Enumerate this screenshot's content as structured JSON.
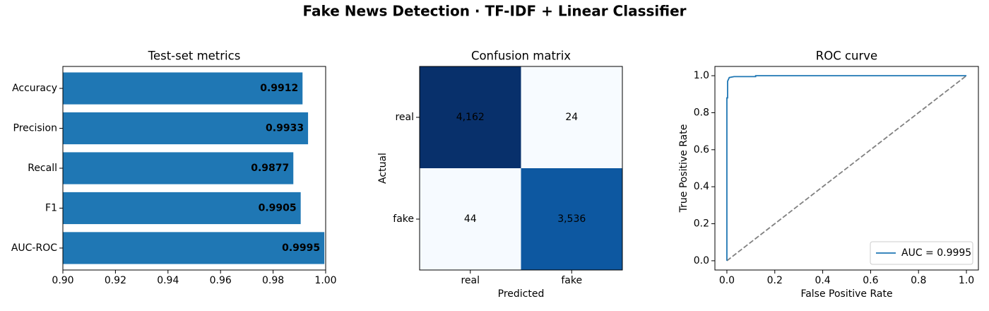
{
  "title": "Fake News Detection  ·  TF-IDF + Linear Classifier",
  "chart_data": [
    {
      "type": "barh",
      "title": "Test-set metrics",
      "categories": [
        "Accuracy",
        "Precision",
        "Recall",
        "F1",
        "AUC-ROC"
      ],
      "values": [
        0.9912,
        0.9933,
        0.9877,
        0.9905,
        0.9995
      ],
      "color": "#1f77b4",
      "xlim": [
        0.9,
        1.0
      ],
      "xticks": [
        {
          "value": 0.9,
          "label": "0.90"
        },
        0.92,
        0.94,
        0.96,
        0.98,
        {
          "value": 1.0,
          "label": "1.00"
        }
      ]
    },
    {
      "type": "heatmap",
      "title": "Confusion matrix",
      "x_categories": [
        "real",
        "fake"
      ],
      "y_categories": [
        "real",
        "fake"
      ],
      "values": [
        [
          4162,
          24
        ],
        [
          44,
          3536
        ]
      ],
      "value_labels": [
        [
          "4,162",
          "24"
        ],
        [
          "44",
          "3,536"
        ]
      ],
      "xlabel": "Predicted",
      "ylabel": "Actual",
      "colormap": [
        "#f7fbff",
        "#deebf7",
        "#c6dbef",
        "#9ecae1",
        "#6baed6",
        "#4292c6",
        "#2171b5",
        "#08519c",
        "#08306b"
      ]
    },
    {
      "type": "line",
      "title": "ROC curve",
      "xlabel": "False Positive Rate",
      "ylabel": "True Positive Rate",
      "series": [
        {
          "name": "AUC = 0.9995",
          "color": "#1f77b4",
          "x": [
            0,
            0,
            0.003,
            0.003,
            0.01,
            0.03,
            0.12,
            0.12,
            1
          ],
          "values": [
            0,
            0.88,
            0.88,
            0.97,
            0.99,
            0.995,
            0.995,
            1.0,
            1.0
          ]
        }
      ],
      "reference_line": {
        "x": [
          0,
          1
        ],
        "values": [
          0,
          1
        ],
        "color": "#808080",
        "style": "dashed"
      },
      "xlim": [
        -0.05,
        1.05
      ],
      "ylim": [
        -0.05,
        1.05
      ],
      "xticks": [
        {
          "value": 0,
          "label": "0.0"
        },
        0.2,
        0.4,
        0.6,
        0.8,
        {
          "value": 1,
          "label": "1.0"
        }
      ],
      "yticks": [
        {
          "value": 0,
          "label": "0.0"
        },
        0.2,
        0.4,
        0.6,
        0.8,
        {
          "value": 1,
          "label": "1.0"
        }
      ],
      "legend": "lower right"
    }
  ]
}
